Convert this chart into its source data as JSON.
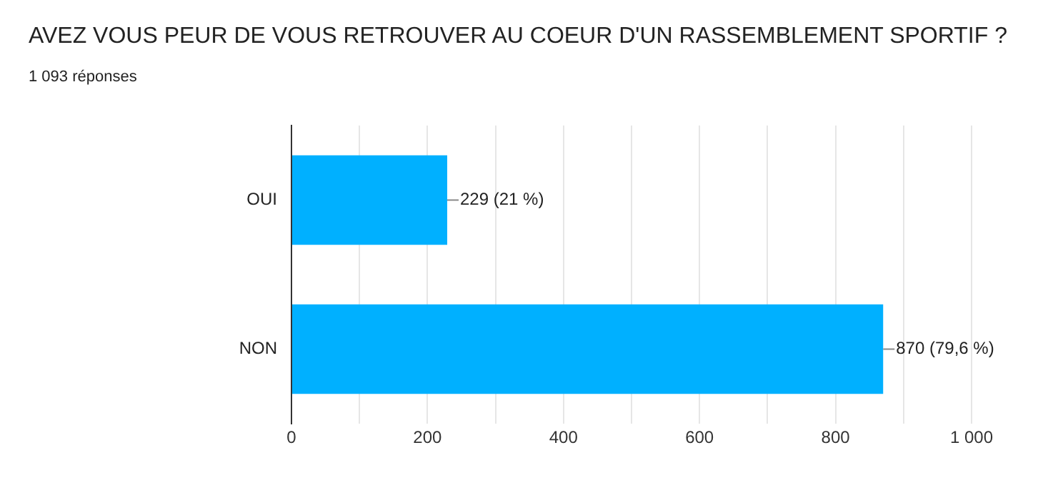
{
  "chart_data": {
    "type": "bar",
    "orientation": "horizontal",
    "title": "AVEZ VOUS PEUR DE VOUS RETROUVER AU COEUR D'UN RASSEMBLEMENT SPORTIF ?",
    "subtitle": "1 093 réponses",
    "categories": [
      "OUI",
      "NON"
    ],
    "values": [
      229,
      870
    ],
    "color": "#00b0ff",
    "value_labels": [
      "229 (21 %)",
      "870 (79,6 %)"
    ],
    "xlim": [
      0,
      1000
    ],
    "xticks": [
      0,
      {
        "value": 100,
        "label": null
      },
      200,
      {
        "value": 300,
        "label": null
      },
      400,
      {
        "value": 500,
        "label": null
      },
      600,
      {
        "value": 700,
        "label": null
      },
      800,
      {
        "value": 900,
        "label": null
      },
      {
        "value": 1000,
        "label": "1 000"
      }
    ],
    "grid": "x",
    "legend": false
  }
}
